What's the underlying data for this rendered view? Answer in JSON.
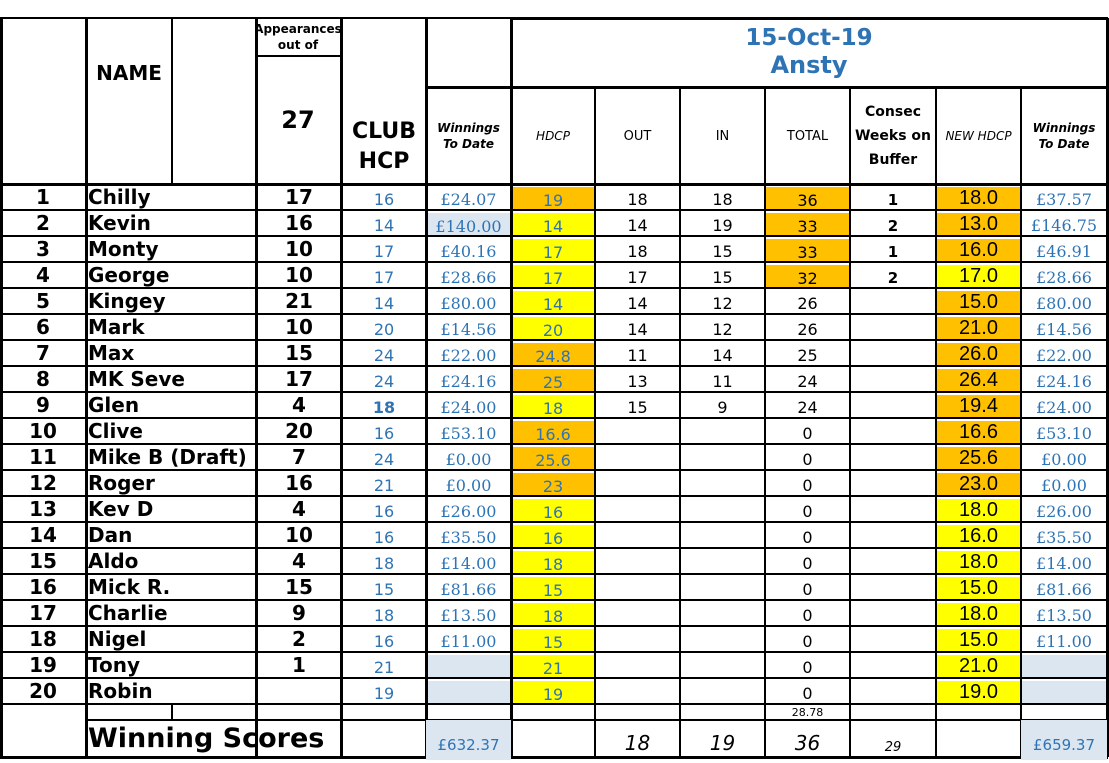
{
  "header": {
    "name_label": "NAME",
    "appearances_label": "Appearances out of",
    "appearances_total": "27",
    "club_hcp_label": "CLUB HCP",
    "event_date": "15-Oct-19",
    "event_venue": "Ansty",
    "col_winnings": "Winnings To Date",
    "col_hdcp": "HDCP",
    "col_out": "OUT",
    "col_in": "IN",
    "col_total": "TOTAL",
    "col_consec": "Consec Weeks on Buffer",
    "col_new_hdcp": "NEW HDCP",
    "col_winnings_new": "Winnings To Date"
  },
  "colors": {
    "orange": "#ffc000",
    "yellow": "#ffff00",
    "light_blue": "#dce6f1",
    "text_blue": "#2e74b5"
  },
  "rows": [
    {
      "rank": "1",
      "name": "Chilly",
      "apps": "17",
      "club": "16",
      "club_bold": false,
      "win": "£24.07",
      "win_bg": "none",
      "hdcp": "19",
      "hdcp_bg": "orange",
      "out": "18",
      "in": "18",
      "total": "36",
      "total_bg": "orange",
      "consec": "1",
      "newh": "18.0",
      "newh_bg": "orange",
      "win2": "£37.57",
      "win2_bg": "none"
    },
    {
      "rank": "2",
      "name": "Kevin",
      "apps": "16",
      "club": "14",
      "club_bold": false,
      "win": "£140.00",
      "win_bg": "light_blue",
      "hdcp": "14",
      "hdcp_bg": "yellow",
      "out": "14",
      "in": "19",
      "total": "33",
      "total_bg": "orange",
      "consec": "2",
      "newh": "13.0",
      "newh_bg": "orange",
      "win2": "£146.75",
      "win2_bg": "none"
    },
    {
      "rank": "3",
      "name": "Monty",
      "apps": "10",
      "club": "17",
      "club_bold": false,
      "win": "£40.16",
      "win_bg": "none",
      "hdcp": "17",
      "hdcp_bg": "yellow",
      "out": "18",
      "in": "15",
      "total": "33",
      "total_bg": "orange",
      "consec": "1",
      "newh": "16.0",
      "newh_bg": "orange",
      "win2": "£46.91",
      "win2_bg": "none"
    },
    {
      "rank": "4",
      "name": "George",
      "apps": "10",
      "club": "17",
      "club_bold": false,
      "win": "£28.66",
      "win_bg": "none",
      "hdcp": "17",
      "hdcp_bg": "yellow",
      "out": "17",
      "in": "15",
      "total": "32",
      "total_bg": "orange",
      "consec": "2",
      "newh": "17.0",
      "newh_bg": "yellow",
      "win2": "£28.66",
      "win2_bg": "none"
    },
    {
      "rank": "5",
      "name": "Kingey",
      "apps": "21",
      "club": "14",
      "club_bold": false,
      "win": "£80.00",
      "win_bg": "none",
      "hdcp": "14",
      "hdcp_bg": "yellow",
      "out": "14",
      "in": "12",
      "total": "26",
      "total_bg": "none",
      "consec": "",
      "newh": "15.0",
      "newh_bg": "orange",
      "win2": "£80.00",
      "win2_bg": "none"
    },
    {
      "rank": "6",
      "name": "Mark",
      "apps": "10",
      "club": "20",
      "club_bold": false,
      "win": "£14.56",
      "win_bg": "none",
      "hdcp": "20",
      "hdcp_bg": "yellow",
      "out": "14",
      "in": "12",
      "total": "26",
      "total_bg": "none",
      "consec": "",
      "newh": "21.0",
      "newh_bg": "orange",
      "win2": "£14.56",
      "win2_bg": "none"
    },
    {
      "rank": "7",
      "name": "Max",
      "apps": "15",
      "club": "24",
      "club_bold": false,
      "win": "£22.00",
      "win_bg": "none",
      "hdcp": "24.8",
      "hdcp_bg": "orange",
      "out": "11",
      "in": "14",
      "total": "25",
      "total_bg": "none",
      "consec": "",
      "newh": "26.0",
      "newh_bg": "orange",
      "win2": "£22.00",
      "win2_bg": "none"
    },
    {
      "rank": "8",
      "name": "MK Seve",
      "apps": "17",
      "club": "24",
      "club_bold": false,
      "win": "£24.16",
      "win_bg": "none",
      "hdcp": "25",
      "hdcp_bg": "orange",
      "out": "13",
      "in": "11",
      "total": "24",
      "total_bg": "none",
      "consec": "",
      "newh": "26.4",
      "newh_bg": "orange",
      "win2": "£24.16",
      "win2_bg": "none"
    },
    {
      "rank": "9",
      "name": "Glen",
      "apps": "4",
      "club": "18",
      "club_bold": true,
      "win": "£24.00",
      "win_bg": "none",
      "hdcp": "18",
      "hdcp_bg": "yellow",
      "out": "15",
      "in": "9",
      "total": "24",
      "total_bg": "none",
      "consec": "",
      "newh": "19.4",
      "newh_bg": "orange",
      "win2": "£24.00",
      "win2_bg": "none"
    },
    {
      "rank": "10",
      "name": "Clive",
      "apps": "20",
      "club": "16",
      "club_bold": false,
      "win": "£53.10",
      "win_bg": "none",
      "hdcp": "16.6",
      "hdcp_bg": "orange",
      "out": "",
      "in": "",
      "total": "0",
      "total_bg": "none",
      "consec": "",
      "newh": "16.6",
      "newh_bg": "orange",
      "win2": "£53.10",
      "win2_bg": "none"
    },
    {
      "rank": "11",
      "name": "Mike B (Draft)",
      "apps": "7",
      "club": "24",
      "club_bold": false,
      "win": "£0.00",
      "win_bg": "none",
      "hdcp": "25.6",
      "hdcp_bg": "orange",
      "out": "",
      "in": "",
      "total": "0",
      "total_bg": "none",
      "consec": "",
      "newh": "25.6",
      "newh_bg": "orange",
      "win2": "£0.00",
      "win2_bg": "none"
    },
    {
      "rank": "12",
      "name": "Roger",
      "apps": "16",
      "club": "21",
      "club_bold": false,
      "win": "£0.00",
      "win_bg": "none",
      "hdcp": "23",
      "hdcp_bg": "orange",
      "out": "",
      "in": "",
      "total": "0",
      "total_bg": "none",
      "consec": "",
      "newh": "23.0",
      "newh_bg": "orange",
      "win2": "£0.00",
      "win2_bg": "none"
    },
    {
      "rank": "13",
      "name": "Kev D",
      "apps": "4",
      "club": "16",
      "club_bold": false,
      "win": "£26.00",
      "win_bg": "none",
      "hdcp": "16",
      "hdcp_bg": "yellow",
      "out": "",
      "in": "",
      "total": "0",
      "total_bg": "none",
      "consec": "",
      "newh": "18.0",
      "newh_bg": "yellow",
      "win2": "£26.00",
      "win2_bg": "none"
    },
    {
      "rank": "14",
      "name": "Dan",
      "apps": "10",
      "club": "16",
      "club_bold": false,
      "win": "£35.50",
      "win_bg": "none",
      "hdcp": "16",
      "hdcp_bg": "yellow",
      "out": "",
      "in": "",
      "total": "0",
      "total_bg": "none",
      "consec": "",
      "newh": "16.0",
      "newh_bg": "yellow",
      "win2": "£35.50",
      "win2_bg": "none"
    },
    {
      "rank": "15",
      "name": "Aldo",
      "apps": "4",
      "club": "18",
      "club_bold": false,
      "win": "£14.00",
      "win_bg": "none",
      "hdcp": "18",
      "hdcp_bg": "yellow",
      "out": "",
      "in": "",
      "total": "0",
      "total_bg": "none",
      "consec": "",
      "newh": "18.0",
      "newh_bg": "yellow",
      "win2": "£14.00",
      "win2_bg": "none"
    },
    {
      "rank": "16",
      "name": "Mick R.",
      "apps": "15",
      "club": "15",
      "club_bold": false,
      "win": "£81.66",
      "win_bg": "none",
      "hdcp": "15",
      "hdcp_bg": "yellow",
      "out": "",
      "in": "",
      "total": "0",
      "total_bg": "none",
      "consec": "",
      "newh": "15.0",
      "newh_bg": "yellow",
      "win2": "£81.66",
      "win2_bg": "none"
    },
    {
      "rank": "17",
      "name": "Charlie",
      "apps": "9",
      "club": "18",
      "club_bold": false,
      "win": "£13.50",
      "win_bg": "none",
      "hdcp": "18",
      "hdcp_bg": "yellow",
      "out": "",
      "in": "",
      "total": "0",
      "total_bg": "none",
      "consec": "",
      "newh": "18.0",
      "newh_bg": "yellow",
      "win2": "£13.50",
      "win2_bg": "none"
    },
    {
      "rank": "18",
      "name": "Nigel",
      "apps": "2",
      "club": "16",
      "club_bold": false,
      "win": "£11.00",
      "win_bg": "none",
      "hdcp": "15",
      "hdcp_bg": "yellow",
      "out": "",
      "in": "",
      "total": "0",
      "total_bg": "none",
      "consec": "",
      "newh": "15.0",
      "newh_bg": "yellow",
      "win2": "£11.00",
      "win2_bg": "none"
    },
    {
      "rank": "19",
      "name": "Tony",
      "apps": "1",
      "club": "21",
      "club_bold": false,
      "win": "",
      "win_bg": "light_blue",
      "hdcp": "21",
      "hdcp_bg": "yellow",
      "out": "",
      "in": "",
      "total": "0",
      "total_bg": "none",
      "consec": "",
      "newh": "21.0",
      "newh_bg": "yellow",
      "win2": "",
      "win2_bg": "light_blue"
    },
    {
      "rank": "20",
      "name": "Robin",
      "apps": "",
      "club": "19",
      "club_bold": false,
      "win": "",
      "win_bg": "light_blue",
      "hdcp": "19",
      "hdcp_bg": "yellow",
      "out": "",
      "in": "",
      "total": "0",
      "total_bg": "none",
      "consec": "",
      "newh": "19.0",
      "newh_bg": "yellow",
      "win2": "",
      "win2_bg": "light_blue"
    }
  ],
  "average_total": "28.78",
  "footer": {
    "label": "Winning Scores",
    "win_total": "£632.37",
    "out": "18",
    "in": "19",
    "total": "36",
    "consec": "29",
    "win2_total": "£659.37"
  }
}
